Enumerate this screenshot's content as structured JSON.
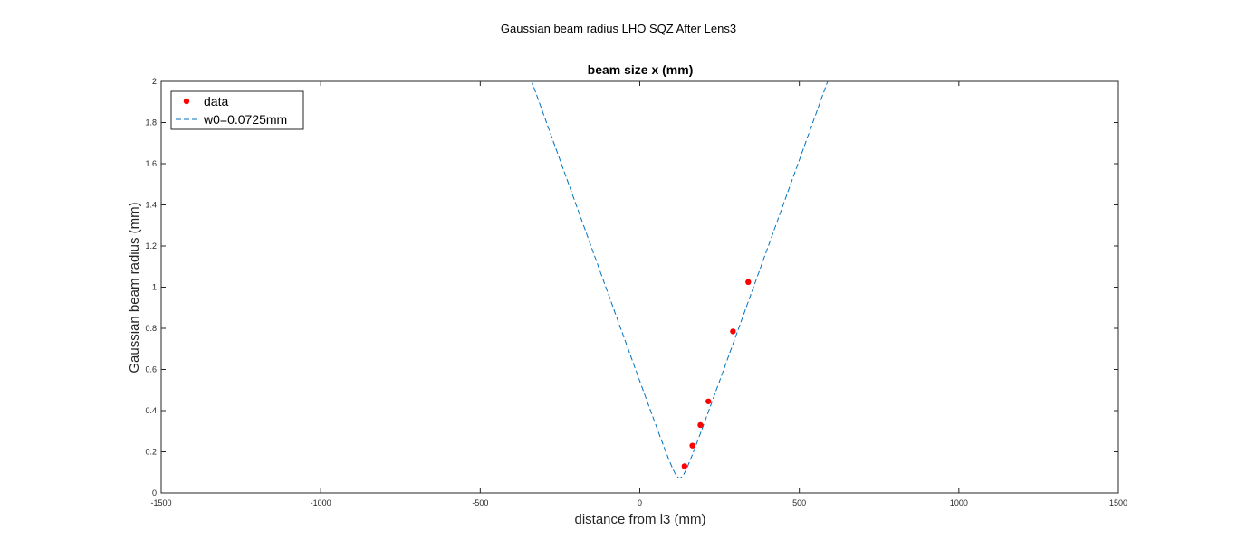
{
  "figure": {
    "suptitle": "Gaussian beam radius LHO SQZ After Lens3"
  },
  "chart_data": {
    "type": "scatter",
    "title": "beam size x (mm)",
    "xlabel": "distance from l3 (mm)",
    "ylabel": "Gaussian beam radius (mm)",
    "xlim": [
      -1500,
      1500
    ],
    "ylim": [
      0,
      2
    ],
    "xticks": [
      -1500,
      -1000,
      -500,
      0,
      500,
      1000,
      1500
    ],
    "xtick_labels": [
      "-1500",
      "-1000",
      "-500",
      "0",
      "500",
      "1000",
      "1500"
    ],
    "yticks": [
      0,
      0.2,
      0.4,
      0.6,
      0.8,
      1,
      1.2,
      1.4,
      1.6,
      1.8,
      2
    ],
    "ytick_labels": [
      "0",
      "0.2",
      "0.4",
      "0.6",
      "0.8",
      "1",
      "1.2",
      "1.4",
      "1.6",
      "1.8",
      "2"
    ],
    "grid": false,
    "legend_position": "top-left",
    "series": [
      {
        "name": "data",
        "kind": "markers",
        "color": "#ff0000",
        "points": [
          {
            "x": 140,
            "y": 0.13
          },
          {
            "x": 165,
            "y": 0.23
          },
          {
            "x": 190,
            "y": 0.33
          },
          {
            "x": 215,
            "y": 0.445
          },
          {
            "x": 292,
            "y": 0.785
          },
          {
            "x": 340,
            "y": 1.025
          }
        ]
      },
      {
        "name": "w0=0.0725mm",
        "kind": "dashed-line",
        "color": "#0072bd",
        "model": {
          "type": "gaussian-beam",
          "w0_mm": 0.0725,
          "waist_position_mm": 125,
          "far_field_slope": 0.00431
        }
      }
    ]
  }
}
